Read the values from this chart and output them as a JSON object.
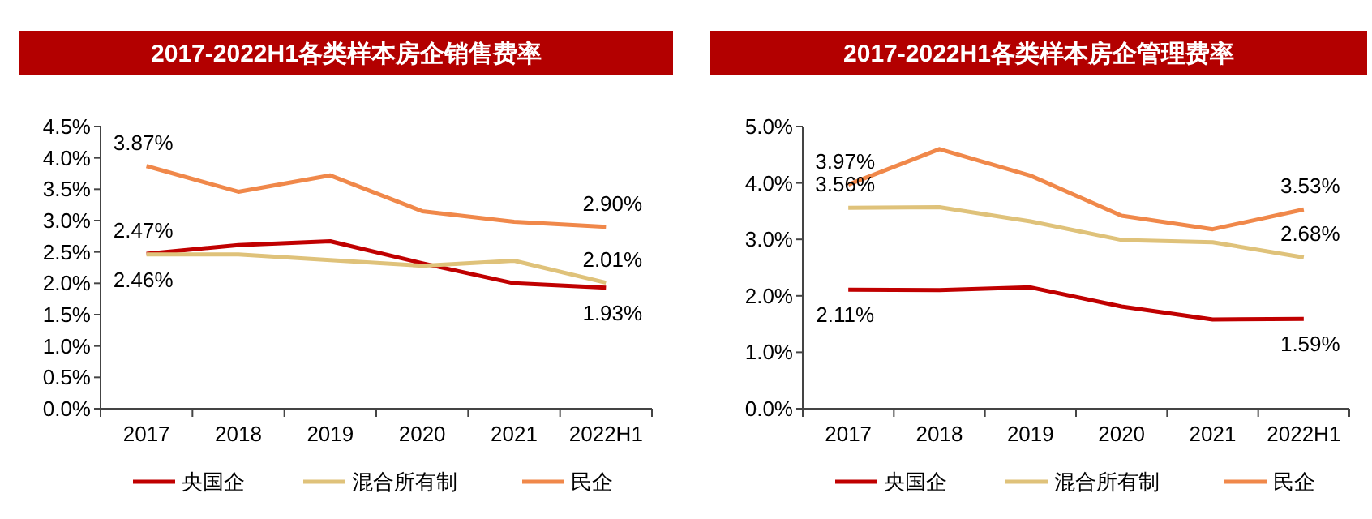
{
  "chart_data": [
    {
      "type": "line",
      "title": "2017-2022H1各类样本房企销售费率",
      "categories": [
        "2017",
        "2018",
        "2019",
        "2020",
        "2021",
        "2022H1"
      ],
      "ylim": [
        0,
        4.5
      ],
      "yticks": [
        {
          "value": 0,
          "label": "0.0%"
        },
        {
          "value": 0.5,
          "label": "0.5%"
        },
        {
          "value": 1,
          "label": "1.0%"
        },
        {
          "value": 1.5,
          "label": "1.5%"
        },
        {
          "value": 2,
          "label": "2.0%"
        },
        {
          "value": 2.5,
          "label": "2.5%"
        },
        {
          "value": 3,
          "label": "3.0%"
        },
        {
          "value": 3.5,
          "label": "3.5%"
        },
        {
          "value": 4,
          "label": "4.0%"
        },
        {
          "value": 4.5,
          "label": "4.5%"
        }
      ],
      "legend": "bottom",
      "grid": false,
      "marker": "none",
      "series": [
        {
          "name": "央国企",
          "color": "#c00000",
          "values": [
            2.47,
            2.61,
            2.67,
            2.32,
            2.0,
            1.93
          ],
          "value_labels": [
            "2.47%",
            null,
            null,
            null,
            null,
            "1.93%"
          ]
        },
        {
          "name": "混合所有制",
          "color": "#dfc27a",
          "values": [
            2.46,
            2.46,
            2.37,
            2.28,
            2.36,
            2.01
          ],
          "value_labels": [
            "2.46%",
            null,
            null,
            null,
            null,
            "2.01%"
          ]
        },
        {
          "name": "民企",
          "color": "#f0884a",
          "values": [
            3.87,
            3.46,
            3.72,
            3.15,
            2.98,
            2.9
          ],
          "value_labels": [
            "3.87%",
            null,
            null,
            null,
            null,
            "2.90%"
          ]
        }
      ]
    },
    {
      "type": "line",
      "title": "2017-2022H1各类样本房企管理费率",
      "categories": [
        "2017",
        "2018",
        "2019",
        "2020",
        "2021",
        "2022H1"
      ],
      "ylim": [
        0,
        5
      ],
      "yticks": [
        {
          "value": 0,
          "label": "0.0%"
        },
        {
          "value": 1,
          "label": "1.0%"
        },
        {
          "value": 2,
          "label": "2.0%"
        },
        {
          "value": 3,
          "label": "3.0%"
        },
        {
          "value": 4,
          "label": "4.0%"
        },
        {
          "value": 5,
          "label": "5.0%"
        }
      ],
      "legend": "bottom",
      "grid": false,
      "marker": "none",
      "series": [
        {
          "name": "央国企",
          "color": "#c00000",
          "values": [
            2.11,
            2.1,
            2.15,
            1.81,
            1.58,
            1.59
          ],
          "value_labels": [
            "2.11%",
            null,
            null,
            null,
            null,
            "1.59%"
          ]
        },
        {
          "name": "混合所有制",
          "color": "#dfc27a",
          "values": [
            3.56,
            3.57,
            3.32,
            2.99,
            2.95,
            2.68
          ],
          "value_labels": [
            "3.56%",
            null,
            null,
            null,
            null,
            "2.68%"
          ]
        },
        {
          "name": "民企",
          "color": "#f0884a",
          "values": [
            3.97,
            4.6,
            4.13,
            3.42,
            3.18,
            3.53
          ],
          "value_labels": [
            "3.97%",
            null,
            null,
            null,
            null,
            "3.53%"
          ]
        }
      ]
    }
  ]
}
